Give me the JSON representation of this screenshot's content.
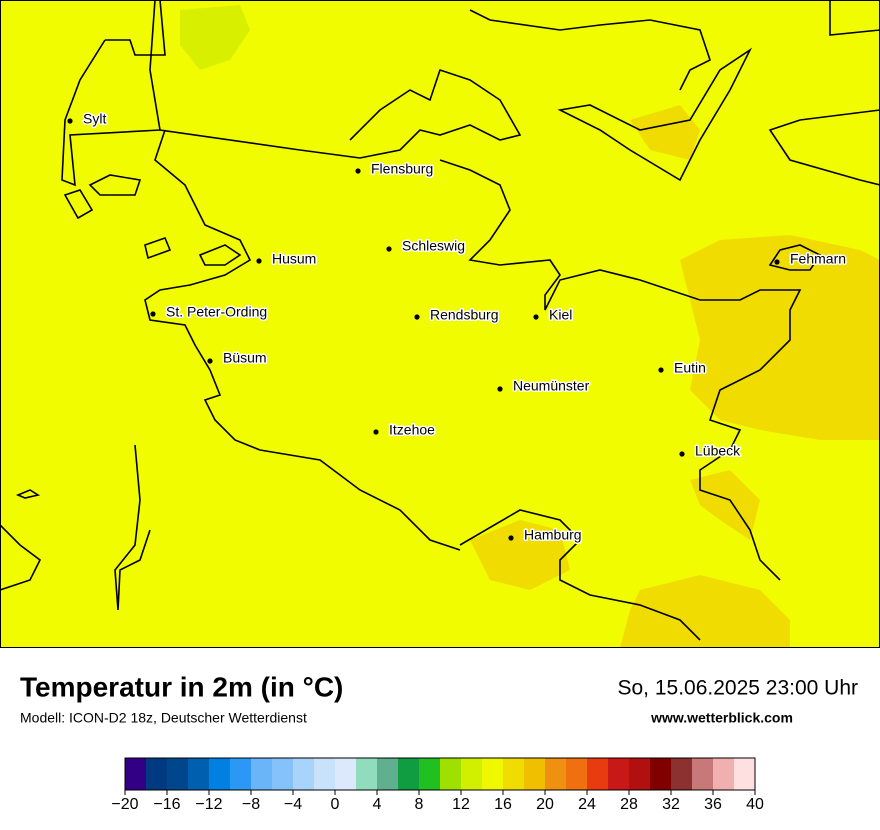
{
  "map": {
    "cities": [
      "Sylt",
      "Flensburg",
      "Schleswig",
      "Husum",
      "Fehmarn",
      "St. Peter-Ording",
      "Rendsburg",
      "Kiel",
      "Büsum",
      "Eutin",
      "Neumünster",
      "Itzehoe",
      "Lübeck",
      "Hamburg"
    ]
  },
  "legend": {
    "title": "Temperatur in 2m (in °C)",
    "subtitle": "Modell: ICON-D2 18z, Deutscher Wetterdienst",
    "datetime": "So, 15.06.2025 23:00 Uhr",
    "website": "www.wetterblick.com"
  },
  "colorbar": {
    "range": [
      -20,
      40
    ],
    "levels": [
      -20,
      -18,
      -16,
      -14,
      -12,
      -10,
      -8,
      -6,
      -4,
      -2,
      0,
      2,
      4,
      6,
      8,
      10,
      12,
      14,
      16,
      18,
      20,
      22,
      24,
      26,
      28,
      30,
      32,
      34,
      36,
      38,
      40
    ],
    "colors": [
      "#320084",
      "#003a80",
      "#00468c",
      "#0060b0",
      "#0080e0",
      "#2a98f4",
      "#6ab4fa",
      "#86c2fa",
      "#a8d4fc",
      "#c8e2fc",
      "#dce9fc",
      "#90dcbc",
      "#60b090",
      "#109c40",
      "#20c020",
      "#a0e000",
      "#d0f000",
      "#f0f800",
      "#f0dc00",
      "#f0c000",
      "#f09010",
      "#f07010",
      "#e83c10",
      "#c81818",
      "#b01010",
      "#800000",
      "#8c3030",
      "#c87878",
      "#f0b0b0",
      "#ffe0e0"
    ],
    "ticks": [
      {
        "value": -20,
        "label": "−20"
      },
      {
        "value": -16,
        "label": "−16"
      },
      {
        "value": -12,
        "label": "−12"
      },
      {
        "value": -8,
        "label": "−8"
      },
      {
        "value": -4,
        "label": "−4"
      },
      0,
      4,
      8,
      12,
      16,
      20,
      24,
      28,
      32,
      36,
      40
    ]
  }
}
